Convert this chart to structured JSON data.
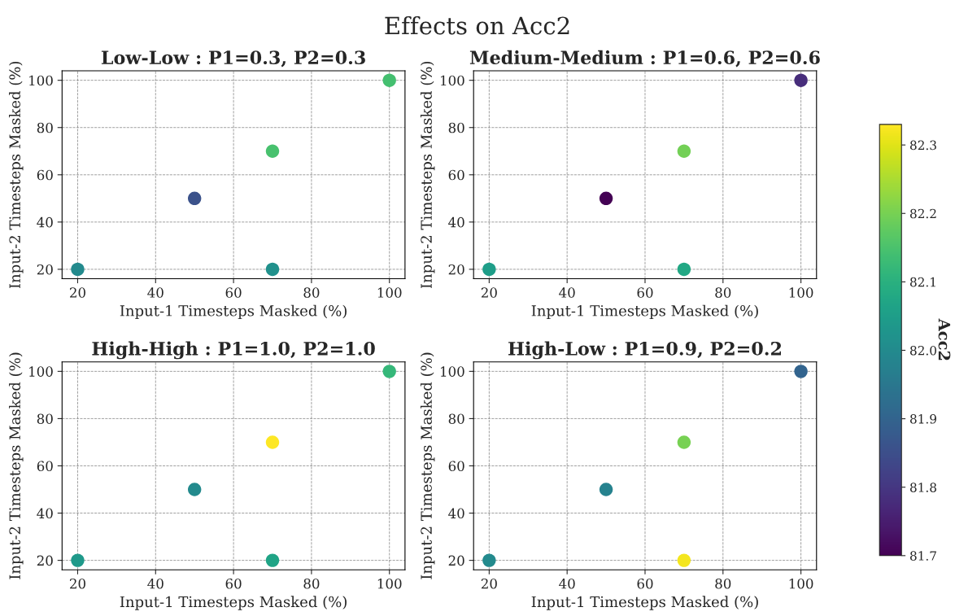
{
  "chart_data": [
    {
      "type": "scatter",
      "title": "Low-Low : P1=0.3, P2=0.3",
      "annotations": [
        "Effects on Acc2"
      ],
      "xlabel": "Input-1 Timesteps Masked (%)",
      "ylabel": "Input-2 Timesteps Masked (%)",
      "x": [
        20,
        50,
        70,
        70,
        100
      ],
      "values": [
        20,
        50,
        70,
        20,
        100
      ],
      "colors": [
        "#238a8d",
        "#3b528b",
        "#48c16e",
        "#21918c",
        "#44bf70"
      ],
      "xlim": [
        16,
        104
      ],
      "ylim": [
        16,
        104
      ],
      "xticks": [
        20,
        40,
        60,
        80,
        100
      ],
      "yticks": [
        20,
        40,
        60,
        80,
        100
      ],
      "grid": true,
      "marker": "circle"
    },
    {
      "type": "scatter",
      "title": "Medium-Medium : P1=0.6, P2=0.6",
      "xlabel": "Input-1 Timesteps Masked (%)",
      "ylabel": "Input-2 Timesteps Masked (%)",
      "x": [
        20,
        50,
        70,
        70,
        100
      ],
      "values": [
        20,
        50,
        70,
        20,
        100
      ],
      "colors": [
        "#1f9e89",
        "#440154",
        "#73d056",
        "#22a884",
        "#472d7b"
      ],
      "xlim": [
        16,
        104
      ],
      "ylim": [
        16,
        104
      ],
      "xticks": [
        20,
        40,
        60,
        80,
        100
      ],
      "yticks": [
        20,
        40,
        60,
        80,
        100
      ],
      "grid": true,
      "marker": "circle"
    },
    {
      "type": "scatter",
      "title": "High-High : P1=1.0, P2=1.0",
      "xlabel": "Input-1 Timesteps Masked (%)",
      "ylabel": "Input-2 Timesteps Masked (%)",
      "x": [
        20,
        50,
        70,
        70,
        100
      ],
      "values": [
        20,
        50,
        70,
        20,
        100
      ],
      "colors": [
        "#1f998a",
        "#238a8d",
        "#fde725",
        "#20a486",
        "#35b779"
      ],
      "xlim": [
        16,
        104
      ],
      "ylim": [
        16,
        104
      ],
      "xticks": [
        20,
        40,
        60,
        80,
        100
      ],
      "yticks": [
        20,
        40,
        60,
        80,
        100
      ],
      "grid": true,
      "marker": "circle"
    },
    {
      "type": "scatter",
      "title": "High-Low : P1=0.9, P2=0.2",
      "xlabel": "Input-1 Timesteps Masked (%)",
      "ylabel": "Input-2 Timesteps Masked (%)",
      "x": [
        20,
        50,
        70,
        70,
        100
      ],
      "values": [
        20,
        50,
        70,
        20,
        100
      ],
      "cvalues": [
        82.0,
        81.98,
        82.2,
        82.32,
        81.9
      ],
      "clim": [
        81.7,
        82.33
      ],
      "cticks": [
        81.7,
        81.8,
        81.9,
        {
          "value": 82.0,
          "label": "82.0"
        },
        82.1,
        82.2,
        82.3
      ],
      "clabel": "Acc2",
      "xlim": [
        16,
        104
      ],
      "ylim": [
        16,
        104
      ],
      "xticks": [
        20,
        40,
        60,
        80,
        100
      ],
      "yticks": [
        20,
        40,
        60,
        80,
        100
      ],
      "grid": true,
      "marker": "circle"
    }
  ]
}
